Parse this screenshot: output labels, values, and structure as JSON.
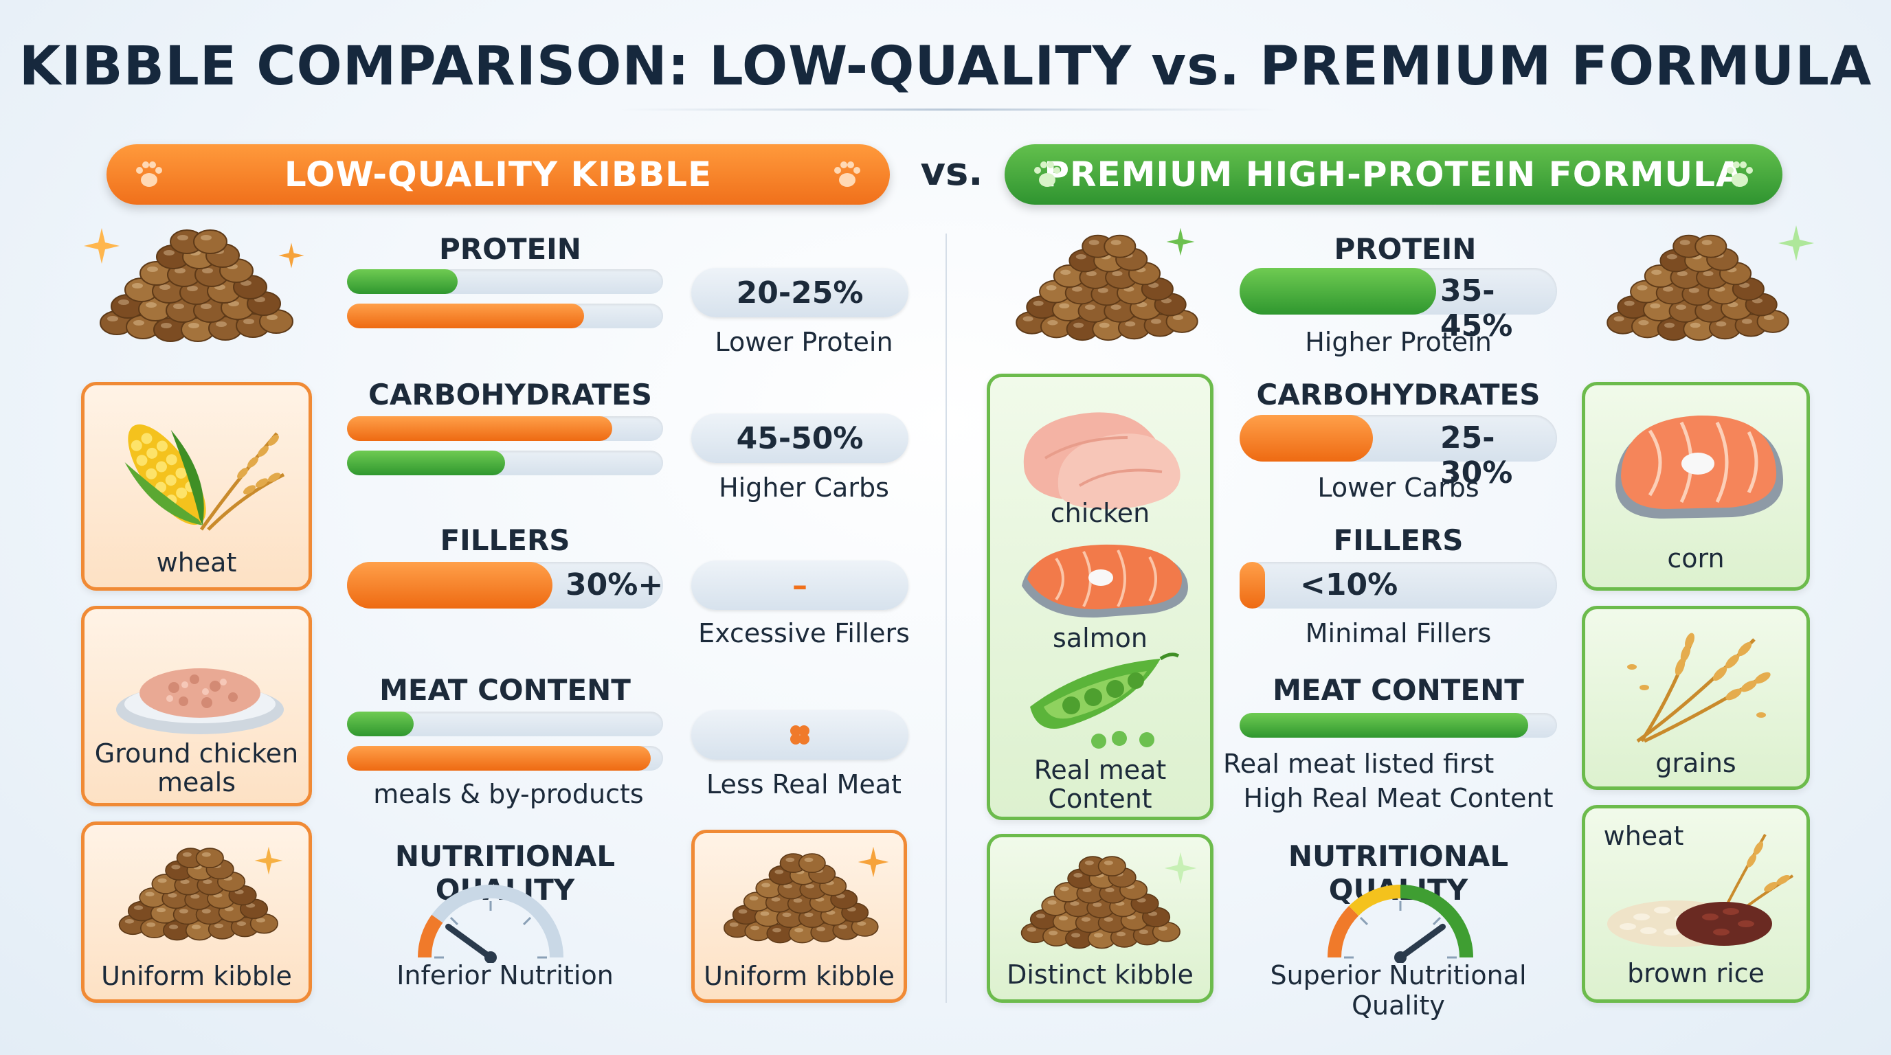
{
  "title": "KIBBLE COMPARISON: LOW-QUALITY vs. PREMIUM FORMULA",
  "vs_label": "vs.",
  "low": {
    "banner": "LOW-QUALITY KIBBLE",
    "color": "#f0701b",
    "cards": [
      "wheat",
      "Ground chicken meals",
      "Uniform kibble"
    ],
    "right_card": "Uniform kibble",
    "sections": {
      "protein": {
        "title": "PROTEIN",
        "value": "20-25%",
        "caption": "Lower Protein",
        "bars": [
          {
            "color": "green",
            "fraction": 0.35
          },
          {
            "color": "orange",
            "fraction": 0.75
          }
        ]
      },
      "carbs": {
        "title": "CARBOHYDRATES",
        "value": "45-50%",
        "caption": "Higher Carbs",
        "bars": [
          {
            "color": "orange",
            "fraction": 0.84
          },
          {
            "color": "green",
            "fraction": 0.5
          }
        ]
      },
      "fillers": {
        "title": "FILLERS",
        "bar_value": "30%+",
        "bar_fraction": 0.65,
        "pill_symbol": "–",
        "caption": "Excessive Fillers"
      },
      "meat": {
        "title": "MEAT CONTENT",
        "caption_bar": "meals & by-products",
        "caption": "Less Real Meat",
        "bars": [
          {
            "color": "green",
            "fraction": 0.21
          },
          {
            "color": "orange",
            "fraction": 0.96
          }
        ]
      },
      "quality": {
        "title": "NUTRITIONAL QUALITY",
        "caption": "Inferior Nutrition",
        "gauge_level": 0.2
      }
    }
  },
  "premium": {
    "banner": "PREMIUM HIGH-PROTEIN FORMULA",
    "color": "#2f9430",
    "left_card_labels": [
      "chicken",
      "salmon",
      "Real meat Content"
    ],
    "bottom_left_card": "Distinct kibble",
    "right_cards": [
      "corn",
      "grains",
      "wheat",
      "brown rice"
    ],
    "sections": {
      "protein": {
        "title": "PROTEIN",
        "value": "35-45%",
        "caption": "Higher Protein",
        "fraction": 0.62
      },
      "carbs": {
        "title": "CARBOHYDRATES",
        "value": "25-30%",
        "caption": "Lower Carbs",
        "fraction": 0.42
      },
      "fillers": {
        "title": "FILLERS",
        "value": "<10%",
        "caption": "Minimal Fillers",
        "fraction": 0.08
      },
      "meat": {
        "title": "MEAT CONTENT",
        "caption_line1": "Real meat listed first",
        "caption_line2": "High Real Meat Content",
        "fraction": 0.91
      },
      "quality": {
        "title": "NUTRITIONAL QUALITY",
        "caption": "Superior Nutritional Quality",
        "gauge_level": 0.8
      }
    }
  },
  "icons": [
    "paw-icon",
    "sparkle-icon",
    "corn-wheat-icon",
    "ground-meat-icon",
    "kibble-pile-icon",
    "chicken-breast-icon",
    "salmon-steak-icon",
    "pea-pod-icon",
    "wheat-stalks-icon",
    "rice-grains-icon",
    "gauge-icon"
  ]
}
